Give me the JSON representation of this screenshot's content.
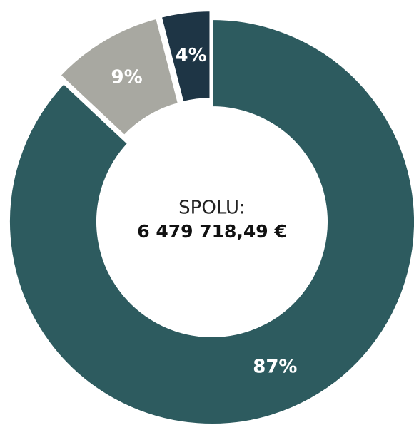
{
  "chart_data": {
    "type": "donut",
    "values": [
      87,
      9,
      4
    ],
    "value_labels": [
      "87%",
      "9%",
      "4%"
    ],
    "colors": [
      "#2d5b5f",
      "#a8a8a1",
      "#1e3545"
    ],
    "center_label": "SPOLU:",
    "total_label": "6 479 718,49 €"
  }
}
